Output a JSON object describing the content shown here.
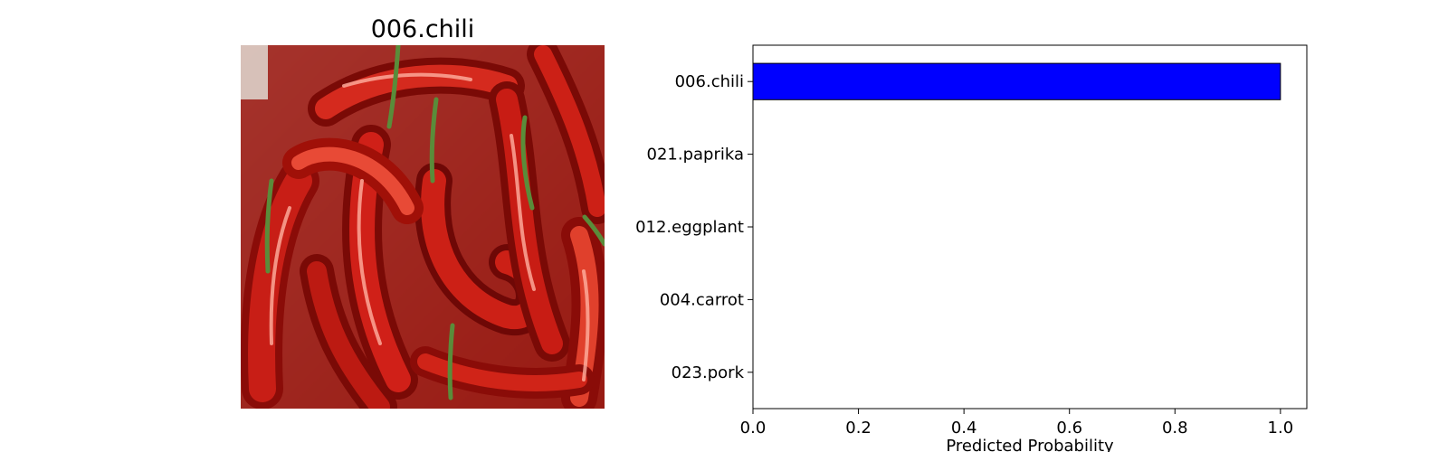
{
  "image_panel": {
    "title": "006.chili",
    "image_subject": "pile of red chili peppers",
    "colors": {
      "pepper": "#b4140c",
      "pepper_dark": "#6e0806",
      "highlight": "#f06050",
      "stem": "#5a8c3a",
      "background": "#d8cfc6"
    }
  },
  "chart_data": {
    "type": "bar",
    "orientation": "horizontal",
    "categories": [
      "006.chili",
      "021.paprika",
      "012.eggplant",
      "004.carrot",
      "023.pork"
    ],
    "values": [
      1.0,
      0.0,
      0.0,
      0.0,
      0.0
    ],
    "title": "",
    "xlabel": "Predicted Probability",
    "ylabel": "",
    "xlim": [
      0,
      1.05
    ],
    "xticks": [
      "0.0",
      "0.2",
      "0.4",
      "0.6",
      "0.8",
      "1.0"
    ],
    "grid": false,
    "legend": "none",
    "bar_color": "#0000ff",
    "bar_edge_color": "#000000"
  }
}
